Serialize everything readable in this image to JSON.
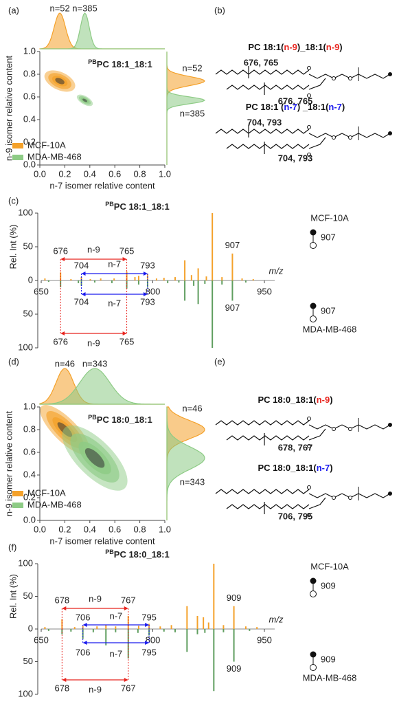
{
  "figure": {
    "density_panels": [
      {
        "label": "(a)",
        "title_prefix": "PB",
        "title": "PC 18:1_18:1",
        "x_label": "n-7 isomer relative content",
        "y_label": "n-9 isomer relative content",
        "xlim": [
          0,
          1
        ],
        "ylim": [
          0,
          1
        ],
        "xticks": [
          {
            "value": 0,
            "label": "0.0"
          },
          {
            "value": 0.2,
            "label": "0.2"
          },
          {
            "value": 0.4,
            "label": "0.4"
          },
          {
            "value": 0.6,
            "label": "0.6"
          },
          {
            "value": 0.8,
            "label": "0.8"
          },
          {
            "value": 1,
            "label": "1.0"
          }
        ],
        "yticks": [
          {
            "value": 0,
            "label": "0.0"
          },
          {
            "value": 0.2,
            "label": "0.2"
          },
          {
            "value": 0.4,
            "label": "0.4"
          },
          {
            "value": 0.6,
            "label": "0.6"
          },
          {
            "value": 0.8,
            "label": "0.8"
          },
          {
            "value": 1,
            "label": "1.0"
          }
        ],
        "series": [
          {
            "name": "MCF-10A",
            "color": "#f4a12a",
            "n_label": "n=52",
            "center": [
              0.16,
              0.74
            ]
          },
          {
            "name": "MDA-MB-468",
            "color": "#8dcb85",
            "n_label": "n=385",
            "center": [
              0.36,
              0.57
            ]
          }
        ]
      },
      {
        "label": "(d)",
        "title_prefix": "PB",
        "title": "PC 18:0_18:1",
        "x_label": "n-7 isomer relative content",
        "y_label": "n-9 isomer relative content",
        "xlim": [
          0,
          1
        ],
        "ylim": [
          0,
          1
        ],
        "xticks": [
          {
            "value": 0,
            "label": "0.0"
          },
          {
            "value": 0.2,
            "label": "0.2"
          },
          {
            "value": 0.4,
            "label": "0.4"
          },
          {
            "value": 0.6,
            "label": "0.6"
          },
          {
            "value": 0.8,
            "label": "0.8"
          },
          {
            "value": 1,
            "label": "1.0"
          }
        ],
        "yticks": [
          {
            "value": 0,
            "label": "0.0"
          },
          {
            "value": 0.2,
            "label": "0.2"
          },
          {
            "value": 0.4,
            "label": "0.4"
          },
          {
            "value": 0.6,
            "label": "0.6"
          },
          {
            "value": 0.8,
            "label": "0.8"
          },
          {
            "value": 1,
            "label": "1.0"
          }
        ],
        "series": [
          {
            "name": "MCF-10A",
            "color": "#f4a12a",
            "n_label": "n=46",
            "center": [
              0.2,
              0.8
            ]
          },
          {
            "name": "MDA-MB-468",
            "color": "#8dcb85",
            "n_label": "n=343",
            "center": [
              0.44,
              0.55
            ]
          }
        ]
      }
    ],
    "structure_panels": [
      {
        "label": "(b)",
        "lipids": [
          {
            "parts": [
              "PC 18:1(",
              "n-9",
              ")_18:1(",
              "n-9",
              ")"
            ],
            "color": "#e8251f",
            "fragments": [
              "676, 765",
              "676, 765"
            ]
          },
          {
            "parts": [
              "PC 18:1 (",
              "n-7",
              ") _18:1(",
              "n-7",
              ")"
            ],
            "color": "#1a1aee",
            "fragments": [
              "704, 793",
              "704, 793"
            ]
          }
        ]
      },
      {
        "label": "(e)",
        "lipids": [
          {
            "parts": [
              "PC 18:0_18:1(",
              "n-9",
              ")"
            ],
            "color": "#e8251f",
            "fragments": [
              "678, 767"
            ]
          },
          {
            "parts": [
              "PC 18:0_18:1(",
              "n-7",
              ")"
            ],
            "color": "#1a1aee",
            "fragments": [
              "706, 795"
            ]
          }
        ]
      }
    ],
    "spectrum_panels": [
      {
        "label": "(c)",
        "title_prefix": "PB",
        "title": "PC 18:1_18:1",
        "y_label": "Rel. Int (%)",
        "x_label": "m/z",
        "xlim": [
          650,
          950
        ],
        "xticks": [
          650,
          800,
          950
        ],
        "ylim": [
          0,
          100
        ],
        "yticks": [
          0,
          50,
          100
        ],
        "series": [
          {
            "name": "MCF-10A",
            "color": "#f4a12a",
            "ion": 907,
            "x": [
              655,
              676,
              690,
              704,
              716,
              730,
              748,
              765,
              776,
              781,
              793,
              805,
              815,
              830,
              843,
              852,
              861,
              872,
              880,
              893,
              907,
              920,
              935
            ],
            "values": [
              3,
              12,
              2,
              5,
              2,
              3,
              3,
              13,
              5,
              7,
              10,
              3,
              4,
              5,
              30,
              8,
              18,
              6,
              100,
              5,
              40,
              3,
              2
            ]
          },
          {
            "name": "MDA-MB-468",
            "color": "#5f9e5f",
            "ion": 907,
            "x": [
              660,
              676,
              700,
              704,
              722,
              745,
              765,
              781,
              793,
              820,
              835,
              843,
              855,
              861,
              870,
              880,
              893,
              907,
              925
            ],
            "values": [
              2,
              10,
              4,
              8,
              3,
              4,
              12,
              6,
              10,
              4,
              3,
              30,
              8,
              35,
              5,
              100,
              6,
              30,
              3
            ]
          }
        ],
        "arrows": [
          {
            "from": 676,
            "to": 765,
            "label": "n-9",
            "color": "#e8251f"
          },
          {
            "from": 704,
            "to": 793,
            "label": "n-7",
            "color": "#1a1aee"
          }
        ]
      },
      {
        "label": "(f)",
        "title_prefix": "PB",
        "title": "PC 18:0_18:1",
        "y_label": "Rel. Int (%)",
        "x_label": "m/z",
        "xlim": [
          650,
          950
        ],
        "xticks": [
          650,
          800,
          950
        ],
        "ylim": [
          0,
          100
        ],
        "yticks": [
          0,
          50,
          100
        ],
        "series": [
          {
            "name": "MCF-10A",
            "color": "#f4a12a",
            "ion": 909,
            "x": [
              655,
              678,
              695,
              706,
              725,
              737,
              750,
              767,
              781,
              795,
              810,
              825,
              846,
              860,
              868,
              875,
              882,
              895,
              909,
              925,
              940
            ],
            "values": [
              3,
              15,
              3,
              5,
              4,
              6,
              4,
              20,
              5,
              8,
              4,
              6,
              35,
              20,
              18,
              10,
              100,
              6,
              35,
              4,
              3
            ]
          },
          {
            "name": "MDA-MB-468",
            "color": "#5f9e5f",
            "ion": 909,
            "x": [
              660,
              678,
              690,
              706,
              720,
              737,
              750,
              767,
              780,
              795,
              815,
              830,
              846,
              860,
              870,
              882,
              895,
              909,
              930
            ],
            "values": [
              3,
              8,
              4,
              15,
              5,
              25,
              5,
              45,
              6,
              10,
              4,
              5,
              35,
              8,
              6,
              95,
              5,
              50,
              3
            ]
          }
        ],
        "arrows": [
          {
            "from": 678,
            "to": 767,
            "label": "n-9",
            "color": "#e8251f"
          },
          {
            "from": 706,
            "to": 795,
            "label": "n-7",
            "color": "#1a1aee"
          }
        ]
      }
    ]
  }
}
